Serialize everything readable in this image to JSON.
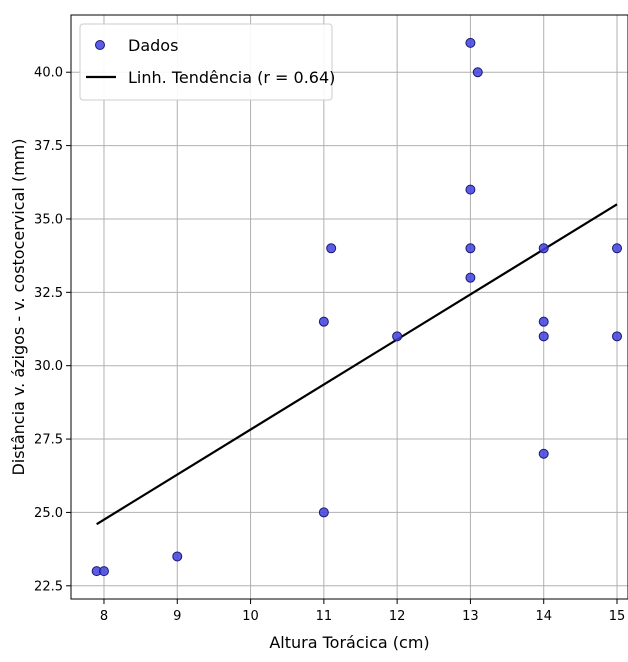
{
  "chart_data": {
    "type": "scatter",
    "xlabel": "Altura Torácica (cm)",
    "ylabel": "Distância v. ázigos - v. costocervical (mm)",
    "xlim": [
      7.55,
      15.15
    ],
    "ylim": [
      22.05,
      41.95
    ],
    "x_ticks": [
      8,
      9,
      10,
      11,
      12,
      13,
      14,
      15
    ],
    "y_ticks": [
      22.5,
      25.0,
      27.5,
      30.0,
      32.5,
      35.0,
      37.5,
      40.0
    ],
    "x_tick_labels": [
      "8",
      "9",
      "10",
      "11",
      "12",
      "13",
      "14",
      "15"
    ],
    "y_tick_labels": [
      "22.5",
      "25.0",
      "27.5",
      "30.0",
      "32.5",
      "35.0",
      "37.5",
      "40.0"
    ],
    "grid": true,
    "legend_position": "top-left",
    "series": [
      {
        "name": "Dados",
        "kind": "scatter",
        "color": "#3f3fe0",
        "edge_color": "#1a1a70",
        "points": [
          {
            "x": 7.9,
            "y": 23.0
          },
          {
            "x": 8.0,
            "y": 23.0
          },
          {
            "x": 9.0,
            "y": 23.5
          },
          {
            "x": 11.0,
            "y": 25.0
          },
          {
            "x": 11.0,
            "y": 31.5
          },
          {
            "x": 11.1,
            "y": 34.0
          },
          {
            "x": 12.0,
            "y": 31.0
          },
          {
            "x": 13.0,
            "y": 41.0
          },
          {
            "x": 13.1,
            "y": 40.0
          },
          {
            "x": 13.0,
            "y": 36.0
          },
          {
            "x": 13.0,
            "y": 34.0
          },
          {
            "x": 13.0,
            "y": 33.0
          },
          {
            "x": 14.0,
            "y": 34.0
          },
          {
            "x": 14.0,
            "y": 31.5
          },
          {
            "x": 14.0,
            "y": 31.0
          },
          {
            "x": 14.0,
            "y": 27.0
          },
          {
            "x": 15.0,
            "y": 34.0
          },
          {
            "x": 15.0,
            "y": 31.0
          }
        ]
      },
      {
        "name": "Linh. Tendência (r = 0.64)",
        "kind": "line",
        "color": "#000000",
        "points": [
          {
            "x": 7.9,
            "y": 24.6
          },
          {
            "x": 15.0,
            "y": 35.5
          }
        ]
      }
    ]
  }
}
